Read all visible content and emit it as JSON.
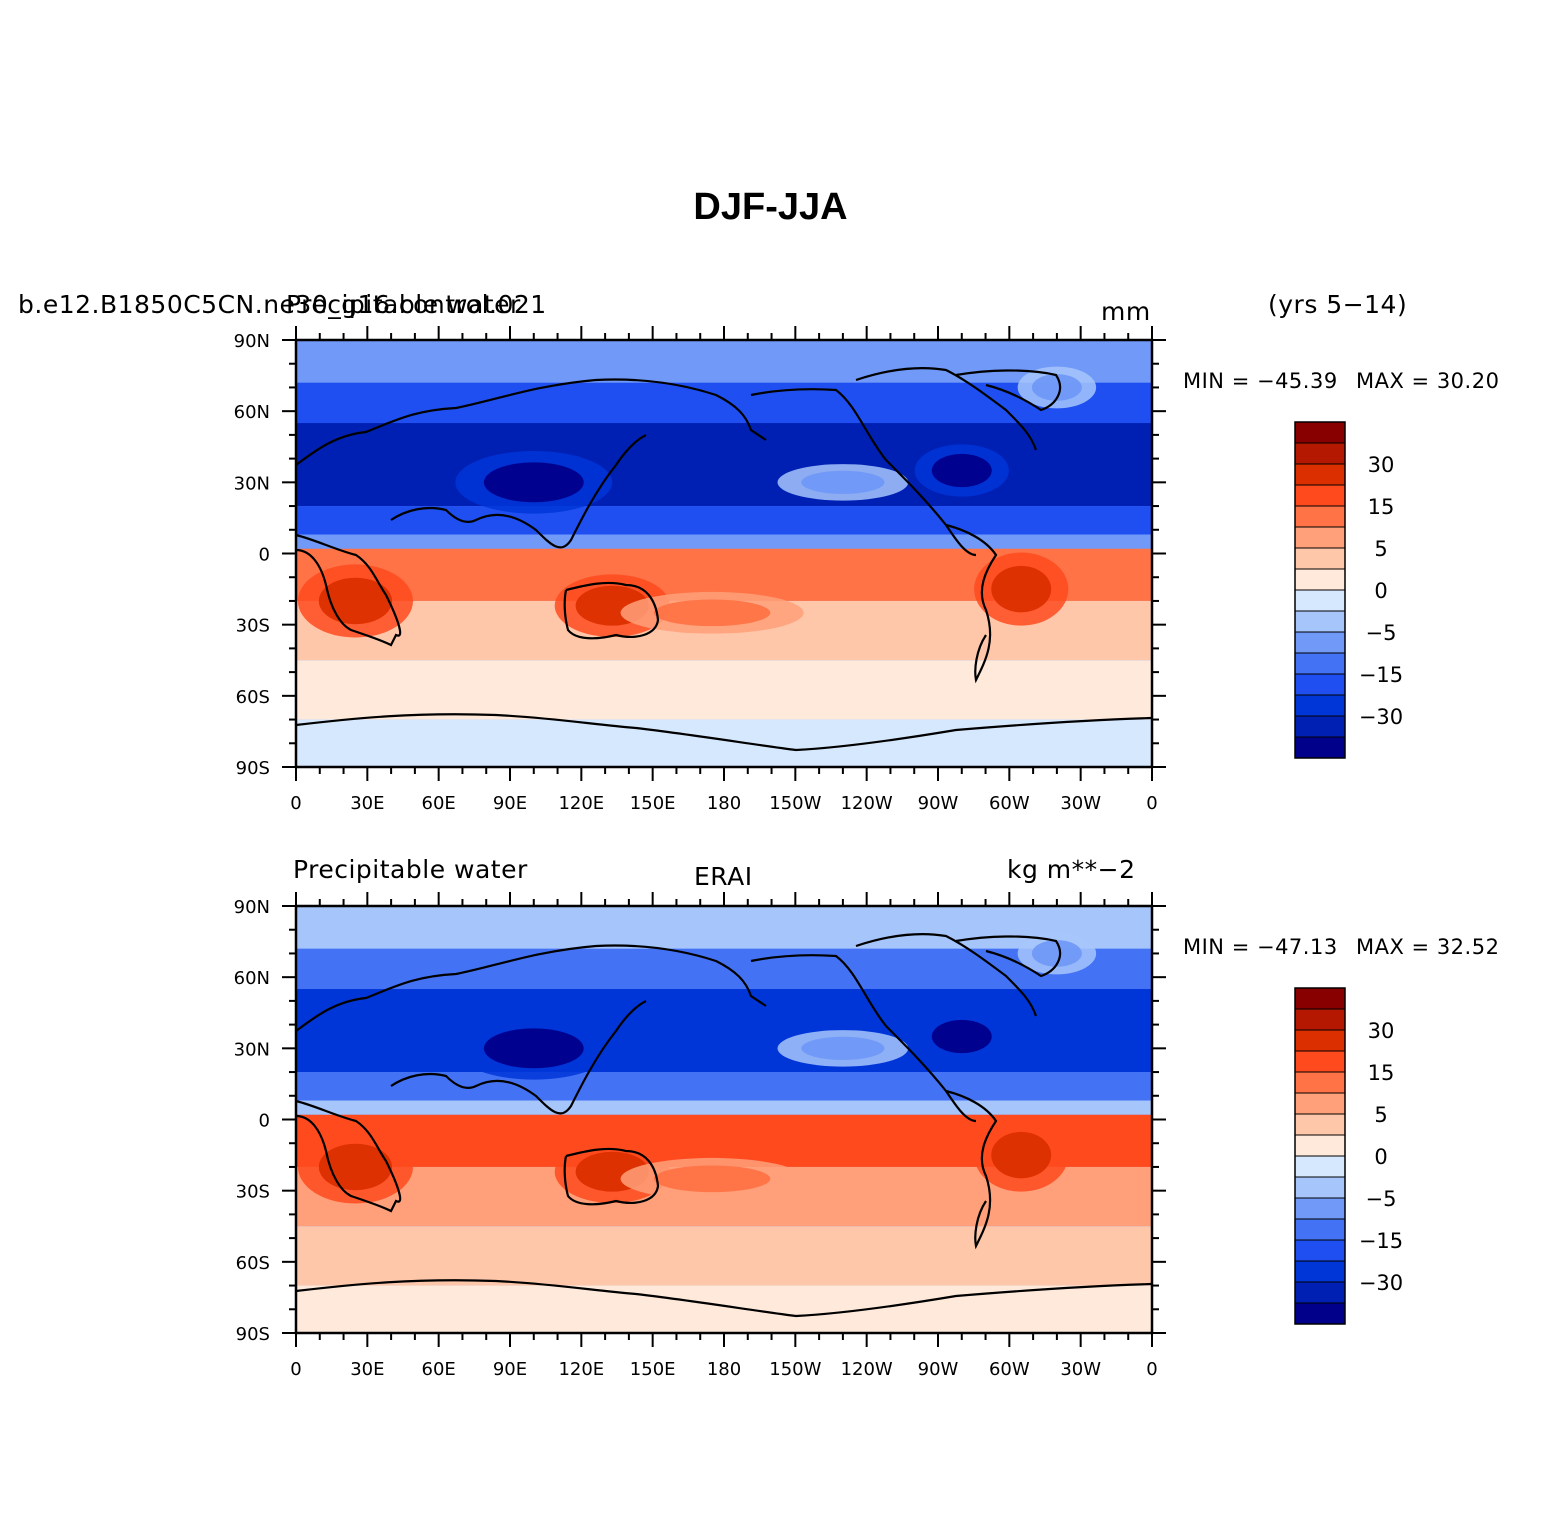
{
  "title": "DJF-JJA",
  "colorbar_colors": [
    "#00008b",
    "#0020b4",
    "#0035d8",
    "#1f4ff0",
    "#4472f5",
    "#7099f8",
    "#a6c5fb",
    "#d6e8fd",
    "#ffe9da",
    "#ffc7aa",
    "#ffa07a",
    "#ff7346",
    "#ff4a1e",
    "#dc2f00",
    "#b51800",
    "#890000"
  ],
  "colorbar_labels": [
    "30",
    "15",
    "5",
    "0",
    "−5",
    "−15",
    "−30"
  ],
  "x_ticks": [
    "0",
    "30E",
    "60E",
    "90E",
    "120E",
    "150E",
    "180",
    "150W",
    "120W",
    "90W",
    "60W",
    "30W",
    "0"
  ],
  "y_ticks": [
    "90N",
    "60N",
    "30N",
    "0",
    "30S",
    "60S",
    "90S"
  ],
  "panels": [
    {
      "left_label": "b.e12.B1850C5CN.ne30_g16.control.021",
      "overlap_label": "Precipitable water",
      "center_label": "",
      "right_label": "mm",
      "years_label": "(yrs 5−14)",
      "min_label": "MIN = −45.39",
      "max_label": "MAX =  30.20"
    },
    {
      "left_label": "Precipitable water",
      "center_label": "ERAI",
      "right_label": "kg m**−2",
      "min_label": "MIN = −47.13",
      "max_label": "MAX =  32.52"
    }
  ],
  "map": {
    "projection": "cylindrical-equidistant",
    "lon_range": [
      0,
      360
    ],
    "lat_range": [
      -90,
      90
    ],
    "overlay": "coastlines",
    "zonal_bands": [
      {
        "lat_top": 90,
        "lat_bottom": 72,
        "level": -5
      },
      {
        "lat_top": 72,
        "lat_bottom": 55,
        "level": -15
      },
      {
        "lat_top": 55,
        "lat_bottom": 20,
        "level": -30
      },
      {
        "lat_top": 20,
        "lat_bottom": 8,
        "level": -15
      },
      {
        "lat_top": 8,
        "lat_bottom": 2,
        "level": -5
      },
      {
        "lat_top": 2,
        "lat_bottom": -20,
        "level": 15
      },
      {
        "lat_top": -20,
        "lat_bottom": -45,
        "level": 5
      },
      {
        "lat_top": -45,
        "lat_bottom": -70,
        "level": 2
      },
      {
        "lat_top": -70,
        "lat_bottom": -90,
        "level": 0
      }
    ],
    "blobs": [
      {
        "lon": 25,
        "lat": -20,
        "rlon": 22,
        "rlat": 14,
        "level": 30
      },
      {
        "lon": 133,
        "lat": -22,
        "rlon": 22,
        "rlat": 12,
        "level": 30
      },
      {
        "lon": 305,
        "lat": -15,
        "rlon": 18,
        "rlat": 14,
        "level": 30
      },
      {
        "lon": 175,
        "lat": -25,
        "rlon": 35,
        "rlat": 8,
        "level": 15
      },
      {
        "lon": 100,
        "lat": 30,
        "rlon": 30,
        "rlat": 12,
        "level": -45
      },
      {
        "lon": 280,
        "lat": 35,
        "rlon": 18,
        "rlat": 10,
        "level": -45
      },
      {
        "lon": 320,
        "lat": 70,
        "rlon": 15,
        "rlat": 8,
        "level": -5
      },
      {
        "lon": 230,
        "lat": 30,
        "rlon": 25,
        "rlat": 7,
        "level": -5
      }
    ]
  }
}
